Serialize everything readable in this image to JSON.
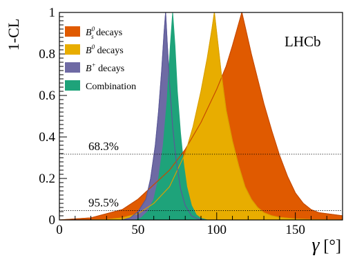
{
  "chart_data": {
    "type": "area",
    "xlabel": "γ [°]",
    "ylabel": "1-CL",
    "xlim": [
      0,
      180
    ],
    "ylim": [
      0,
      1
    ],
    "x_ticks": [
      0,
      50,
      100,
      150
    ],
    "y_ticks": [
      0,
      0.2,
      0.4,
      0.6,
      0.8,
      1
    ],
    "x_tick_labels": [
      "0",
      "50",
      "100",
      "150"
    ],
    "y_tick_labels": [
      "0",
      "0.2",
      "0.4",
      "0.6",
      "0.8",
      "1"
    ],
    "grid": false,
    "legend_position": "top-left",
    "experiment_tag": "LHCb",
    "reference_lines": [
      {
        "y": 0.317,
        "label": "68.3%"
      },
      {
        "y": 0.045,
        "label": "95.5%"
      }
    ],
    "series": [
      {
        "name": "B_s^0 decays",
        "legend_label": "B",
        "legend_sub": "s",
        "legend_sup": "0",
        "legend_suffix": " decays",
        "color": "#e05a00",
        "x": [
          0,
          20,
          40,
          50,
          60,
          70,
          80,
          90,
          100,
          106,
          110,
          113,
          116,
          119,
          122,
          126,
          130,
          135,
          140,
          145,
          150,
          155,
          160,
          165,
          170,
          175,
          180
        ],
        "y": [
          0.0,
          0.01,
          0.05,
          0.1,
          0.17,
          0.24,
          0.34,
          0.47,
          0.63,
          0.74,
          0.84,
          0.92,
          1.0,
          0.9,
          0.8,
          0.68,
          0.56,
          0.43,
          0.31,
          0.21,
          0.13,
          0.08,
          0.05,
          0.035,
          0.03,
          0.025,
          0.02
        ]
      },
      {
        "name": "B^0 decays",
        "legend_label": "B",
        "legend_sub": "",
        "legend_sup": "0",
        "legend_suffix": " decays",
        "color": "#e8ad00",
        "x": [
          20,
          30,
          40,
          50,
          60,
          70,
          80,
          85,
          90,
          94,
          97,
          98.5,
          100,
          103,
          106,
          110,
          114,
          118,
          122,
          126,
          130,
          135,
          140,
          150,
          160,
          170,
          180
        ],
        "y": [
          0.0,
          0.002,
          0.01,
          0.03,
          0.08,
          0.16,
          0.32,
          0.45,
          0.62,
          0.78,
          0.92,
          1.0,
          0.9,
          0.7,
          0.53,
          0.38,
          0.26,
          0.16,
          0.1,
          0.06,
          0.035,
          0.02,
          0.012,
          0.005,
          0.002,
          0.001,
          0.0
        ]
      },
      {
        "name": "B^+ decays",
        "legend_label": "B",
        "legend_sub": "",
        "legend_sup": "+",
        "legend_suffix": " decays",
        "color": "#6e6aa4",
        "x": [
          40,
          45,
          50,
          55,
          58,
          61,
          63,
          65,
          66.5,
          67.5,
          68.5,
          70,
          72,
          74,
          77,
          80,
          84,
          88,
          92
        ],
        "y": [
          0.0,
          0.01,
          0.04,
          0.1,
          0.2,
          0.36,
          0.52,
          0.72,
          0.9,
          1.0,
          0.86,
          0.66,
          0.45,
          0.3,
          0.15,
          0.07,
          0.02,
          0.005,
          0.0
        ]
      },
      {
        "name": "Combination",
        "legend_label": "Combination",
        "legend_sub": "",
        "legend_sup": "",
        "legend_suffix": "",
        "color": "#1ea37a",
        "x": [
          48,
          52,
          56,
          60,
          63,
          66,
          68.5,
          70.5,
          72,
          73.5,
          75,
          77,
          79,
          81,
          84,
          87,
          90,
          94
        ],
        "y": [
          0.0,
          0.01,
          0.04,
          0.1,
          0.2,
          0.36,
          0.58,
          0.84,
          1.0,
          0.84,
          0.62,
          0.42,
          0.27,
          0.16,
          0.07,
          0.025,
          0.008,
          0.0
        ]
      }
    ]
  }
}
